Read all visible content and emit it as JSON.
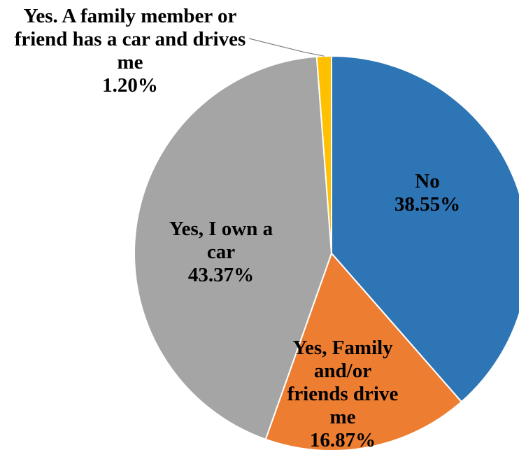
{
  "chart_data": {
    "type": "pie",
    "title": "",
    "start_angle_deg": 0,
    "direction": "clockwise",
    "slices": [
      {
        "name": "No",
        "value": 38.55,
        "value_label": "38.55%",
        "color": "#2E75B6",
        "label_lines": [
          "No",
          "38.55%"
        ]
      },
      {
        "name": "Yes, Family and/or friends drive me",
        "value": 16.87,
        "value_label": "16.87%",
        "color": "#ED7D31",
        "label_lines": [
          "Yes, Family",
          "and/or",
          "friends drive",
          "me",
          "16.87%"
        ]
      },
      {
        "name": "Yes, I own a car",
        "value": 43.37,
        "value_label": "43.37%",
        "color": "#A5A5A5",
        "label_lines": [
          "Yes, I own a",
          "car",
          "43.37%"
        ]
      },
      {
        "name": "Yes. A family member or friend has a car and drives me",
        "value": 1.2,
        "value_label": "1.20%",
        "color": "#FFC000",
        "label_lines": [
          "Yes. A family member or",
          "friend has a car and drives",
          "me",
          "1.20%"
        ]
      }
    ]
  }
}
